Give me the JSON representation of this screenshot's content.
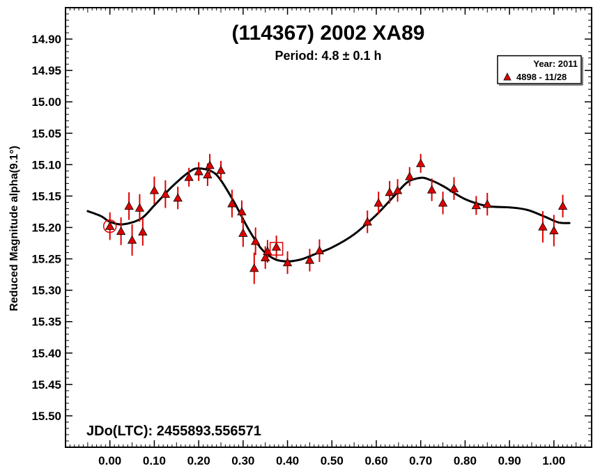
{
  "chart_data": {
    "type": "scatter",
    "title": "(114367) 2002 XA89",
    "subtitle": "Period: 4.8 ± 0.1 h",
    "xlabel": "",
    "ylabel": "Reduced Magnitude alpha(9.1°)",
    "xlim": [
      -0.1,
      1.085
    ],
    "ylim": [
      15.55,
      14.85
    ],
    "y_inverted": true,
    "x_ticks": [
      "0.00",
      "0.10",
      "0.20",
      "0.30",
      "0.40",
      "0.50",
      "0.60",
      "0.70",
      "0.80",
      "0.90",
      "1.00"
    ],
    "y_ticks": [
      "14.90",
      "14.95",
      "15.00",
      "15.05",
      "15.10",
      "15.15",
      "15.20",
      "15.25",
      "15.30",
      "15.35",
      "15.40",
      "15.45",
      "15.50"
    ],
    "annotation": "JDo(LTC): 2455893.556571",
    "legend": {
      "title": "Year: 2011",
      "placement": "top-right",
      "entries": [
        {
          "label": "4898 - 11/28",
          "marker": "triangle",
          "color": "#dd0000"
        }
      ]
    },
    "marker_color": "#dd0000",
    "curve_color": "#000000",
    "series": [
      {
        "name": "4898 - 11/28",
        "points": [
          {
            "x": 0.0,
            "y": 15.198,
            "err": 0.022
          },
          {
            "x": 0.025,
            "y": 15.206,
            "err": 0.022
          },
          {
            "x": 0.043,
            "y": 15.166,
            "err": 0.022
          },
          {
            "x": 0.05,
            "y": 15.22,
            "err": 0.025
          },
          {
            "x": 0.067,
            "y": 15.169,
            "err": 0.022
          },
          {
            "x": 0.074,
            "y": 15.207,
            "err": 0.022
          },
          {
            "x": 0.1,
            "y": 15.141,
            "err": 0.022
          },
          {
            "x": 0.125,
            "y": 15.147,
            "err": 0.022
          },
          {
            "x": 0.153,
            "y": 15.153,
            "err": 0.018
          },
          {
            "x": 0.178,
            "y": 15.12,
            "err": 0.015
          },
          {
            "x": 0.2,
            "y": 15.111,
            "err": 0.015
          },
          {
            "x": 0.22,
            "y": 15.116,
            "err": 0.018
          },
          {
            "x": 0.225,
            "y": 15.101,
            "err": 0.018
          },
          {
            "x": 0.25,
            "y": 15.109,
            "err": 0.015
          },
          {
            "x": 0.275,
            "y": 15.162,
            "err": 0.022
          },
          {
            "x": 0.297,
            "y": 15.175,
            "err": 0.018
          },
          {
            "x": 0.3,
            "y": 15.209,
            "err": 0.022
          },
          {
            "x": 0.325,
            "y": 15.265,
            "err": 0.025
          },
          {
            "x": 0.328,
            "y": 15.222,
            "err": 0.022
          },
          {
            "x": 0.35,
            "y": 15.248,
            "err": 0.018
          },
          {
            "x": 0.355,
            "y": 15.238,
            "err": 0.018
          },
          {
            "x": 0.375,
            "y": 15.231,
            "err": 0.018
          },
          {
            "x": 0.4,
            "y": 15.256,
            "err": 0.018
          },
          {
            "x": 0.45,
            "y": 15.252,
            "err": 0.018
          },
          {
            "x": 0.472,
            "y": 15.237,
            "err": 0.018
          },
          {
            "x": 0.58,
            "y": 15.191,
            "err": 0.018
          },
          {
            "x": 0.605,
            "y": 15.161,
            "err": 0.018
          },
          {
            "x": 0.63,
            "y": 15.144,
            "err": 0.018
          },
          {
            "x": 0.648,
            "y": 15.141,
            "err": 0.018
          },
          {
            "x": 0.675,
            "y": 15.119,
            "err": 0.015
          },
          {
            "x": 0.7,
            "y": 15.098,
            "err": 0.015
          },
          {
            "x": 0.725,
            "y": 15.14,
            "err": 0.018
          },
          {
            "x": 0.75,
            "y": 15.161,
            "err": 0.018
          },
          {
            "x": 0.775,
            "y": 15.138,
            "err": 0.018
          },
          {
            "x": 0.825,
            "y": 15.165,
            "err": 0.015
          },
          {
            "x": 0.85,
            "y": 15.163,
            "err": 0.018
          },
          {
            "x": 0.975,
            "y": 15.199,
            "err": 0.025
          },
          {
            "x": 1.0,
            "y": 15.205,
            "err": 0.025
          },
          {
            "x": 1.02,
            "y": 15.166,
            "err": 0.018
          }
        ]
      }
    ],
    "highlight_circle": {
      "x": 0.0,
      "y": 15.198
    },
    "highlight_square": {
      "x": 0.375,
      "y": 15.234
    },
    "fit_curve": [
      [
        -0.05,
        15.174
      ],
      [
        -0.02,
        15.182
      ],
      [
        0.0,
        15.191
      ],
      [
        0.03,
        15.195
      ],
      [
        0.07,
        15.186
      ],
      [
        0.1,
        15.165
      ],
      [
        0.14,
        15.135
      ],
      [
        0.18,
        15.111
      ],
      [
        0.2,
        15.106
      ],
      [
        0.23,
        15.111
      ],
      [
        0.25,
        15.125
      ],
      [
        0.28,
        15.16
      ],
      [
        0.31,
        15.2
      ],
      [
        0.34,
        15.233
      ],
      [
        0.37,
        15.25
      ],
      [
        0.4,
        15.254
      ],
      [
        0.43,
        15.251
      ],
      [
        0.46,
        15.243
      ],
      [
        0.5,
        15.232
      ],
      [
        0.55,
        15.211
      ],
      [
        0.6,
        15.18
      ],
      [
        0.64,
        15.15
      ],
      [
        0.67,
        15.128
      ],
      [
        0.7,
        15.121
      ],
      [
        0.72,
        15.124
      ],
      [
        0.75,
        15.134
      ],
      [
        0.8,
        15.155
      ],
      [
        0.85,
        15.166
      ],
      [
        0.9,
        15.168
      ],
      [
        0.94,
        15.172
      ],
      [
        0.98,
        15.183
      ],
      [
        1.01,
        15.192
      ],
      [
        1.035,
        15.193
      ]
    ]
  }
}
